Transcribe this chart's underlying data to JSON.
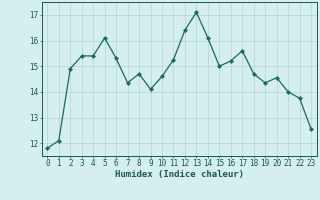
{
  "x": [
    0,
    1,
    2,
    3,
    4,
    5,
    6,
    7,
    8,
    9,
    10,
    11,
    12,
    13,
    14,
    15,
    16,
    17,
    18,
    19,
    20,
    21,
    22,
    23
  ],
  "y": [
    11.8,
    12.1,
    14.9,
    15.4,
    15.4,
    16.1,
    15.3,
    14.35,
    14.7,
    14.1,
    14.6,
    15.25,
    16.4,
    17.1,
    16.1,
    15.0,
    15.2,
    15.6,
    14.7,
    14.35,
    14.55,
    14.0,
    13.75,
    12.55
  ],
  "line_color": "#1a6b55",
  "marker": "D",
  "marker_size": 2.2,
  "linewidth": 0.9,
  "bg_color": "#d5efef",
  "grid_color": "#b0d4d4",
  "xlabel": "Humidex (Indice chaleur)",
  "ylim": [
    11.5,
    17.5
  ],
  "xlim": [
    -0.5,
    23.5
  ],
  "yticks": [
    12,
    13,
    14,
    15,
    16,
    17
  ],
  "xticks": [
    0,
    1,
    2,
    3,
    4,
    5,
    6,
    7,
    8,
    9,
    10,
    11,
    12,
    13,
    14,
    15,
    16,
    17,
    18,
    19,
    20,
    21,
    22,
    23
  ],
  "tick_label_color": "#1a5555",
  "label_fontsize": 6.5,
  "tick_fontsize": 5.5,
  "axis_color": "#1a5555"
}
